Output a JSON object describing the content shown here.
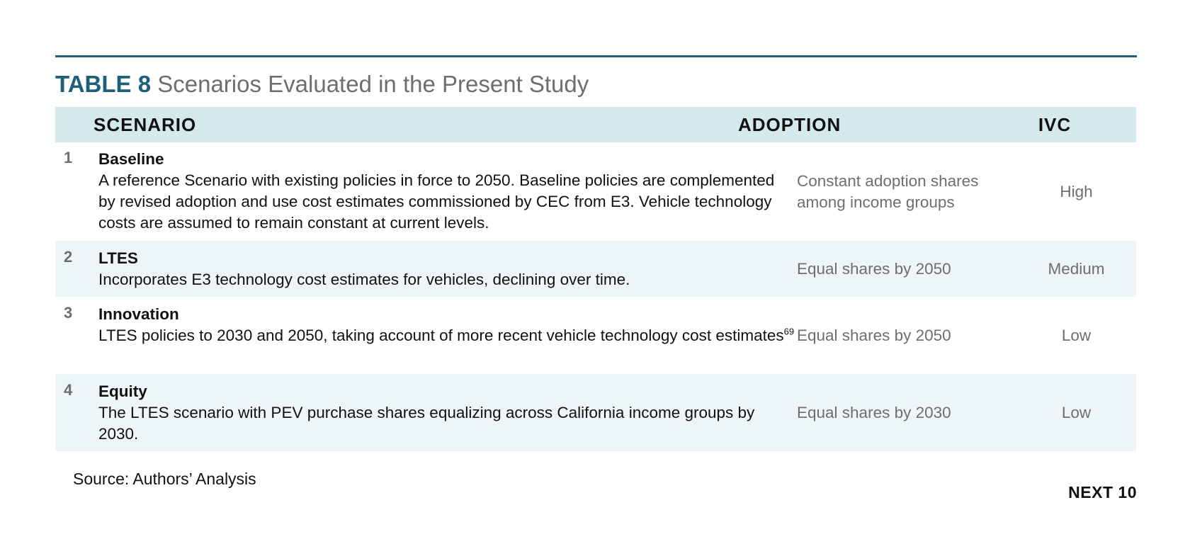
{
  "table": {
    "label": "TABLE 8",
    "title": "Scenarios Evaluated in the Present Study",
    "headers": {
      "scenario": "SCENARIO",
      "adoption": "ADOPTION",
      "ivc": "IVC"
    },
    "rows": [
      {
        "num": "1",
        "name": "Baseline",
        "description": "A reference Scenario with existing policies in force to 2050. Baseline policies are complemented by revised adoption and use cost estimates commissioned by CEC from E3. Vehicle technology costs are assumed to remain constant at current levels.",
        "footnote": "",
        "adoption": "Constant adoption shares among income groups",
        "ivc": "High"
      },
      {
        "num": "2",
        "name": "LTES",
        "description": "Incorporates E3 technology cost estimates for vehicles, declining over time.",
        "footnote": "",
        "adoption": "Equal shares by 2050",
        "ivc": "Medium"
      },
      {
        "num": "3",
        "name": "Innovation",
        "description": "LTES policies to 2030 and 2050, taking account of more recent vehicle technology cost estimates",
        "footnote": "69",
        "adoption": "Equal shares by 2050",
        "ivc": "Low"
      },
      {
        "num": "4",
        "name": "Equity",
        "description": "The LTES scenario with PEV purchase shares equalizing across California income groups by 2030.",
        "footnote": "",
        "adoption": "Equal shares by 2030",
        "ivc": "Low"
      }
    ]
  },
  "source": "Source: Authors’ Analysis",
  "brand": "NEXT 10"
}
